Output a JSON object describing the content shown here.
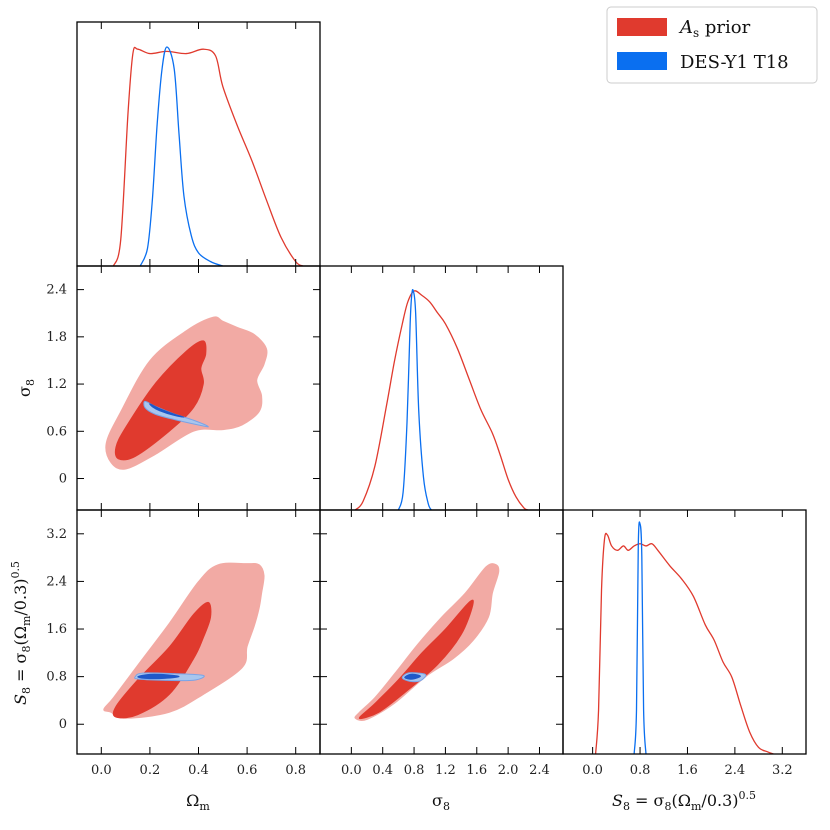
{
  "chart_data": {
    "type": "triangle-plot",
    "legend": {
      "placement": "top-right",
      "entries": [
        {
          "label": "A_s prior",
          "label_main": "A",
          "label_sub": "s",
          "label_rest": " prior",
          "color": "#e03a2e"
        },
        {
          "label": "DES-Y1 T18",
          "color": "#0a6ff0"
        }
      ]
    },
    "colors": {
      "red_line": "#e03a2e",
      "red_outer": "#f2aaa4",
      "red_inner": "#e03a2e",
      "blue_line": "#0a6ff0",
      "blue_outer": "#a8c6ee",
      "blue_inner": "#1f58c9"
    },
    "parameters": [
      {
        "name": "Omega_m",
        "label": "Ωm",
        "label_main": "Ω",
        "label_sub": "m",
        "range": [
          -0.1,
          0.9
        ],
        "ticks": [
          0.0,
          0.2,
          0.4,
          0.6,
          0.8
        ],
        "tick_labels": [
          "0.0",
          "0.2",
          "0.4",
          "0.6",
          "0.8"
        ]
      },
      {
        "name": "sigma_8",
        "label": "σ8",
        "label_main": "σ",
        "label_sub": "8",
        "range": [
          -0.4,
          2.7
        ],
        "ticks": [
          0.0,
          0.6,
          1.2,
          1.8,
          2.4
        ],
        "tick_labels": [
          "0",
          "0.6",
          "1.2",
          "1.8",
          "2.4"
        ],
        "x_ticks": [
          0.0,
          0.4,
          0.8,
          1.2,
          1.6,
          2.0,
          2.4
        ],
        "x_tick_labels": [
          "0.0",
          "0.4",
          "0.8",
          "1.2",
          "1.6",
          "2.0",
          "2.4"
        ]
      },
      {
        "name": "S_8",
        "label": "S8 = σ8(Ωm/0.3)^0.5",
        "range": [
          -0.5,
          3.6
        ],
        "ticks": [
          0.0,
          0.8,
          1.6,
          2.4,
          3.2
        ],
        "tick_labels": [
          "0",
          "0.8",
          "1.6",
          "2.4",
          "3.2"
        ],
        "x_ticks": [
          0.0,
          0.8,
          1.6,
          2.4,
          3.2
        ],
        "x_tick_labels": [
          "0.0",
          "0.8",
          "1.6",
          "2.4",
          "3.2"
        ]
      }
    ],
    "diagonals": [
      {
        "param": "Omega_m",
        "red_curve": [
          [
            0.05,
            0
          ],
          [
            0.08,
            0.12
          ],
          [
            0.11,
            0.7
          ],
          [
            0.13,
            0.97
          ],
          [
            0.15,
            0.99
          ],
          [
            0.2,
            0.97
          ],
          [
            0.27,
            0.98
          ],
          [
            0.35,
            0.97
          ],
          [
            0.42,
            0.99
          ],
          [
            0.47,
            0.96
          ],
          [
            0.5,
            0.82
          ],
          [
            0.56,
            0.64
          ],
          [
            0.62,
            0.48
          ],
          [
            0.68,
            0.3
          ],
          [
            0.74,
            0.13
          ],
          [
            0.8,
            0.02
          ],
          [
            0.83,
            0
          ]
        ],
        "blue_curve": [
          [
            0.16,
            0
          ],
          [
            0.19,
            0.08
          ],
          [
            0.21,
            0.3
          ],
          [
            0.23,
            0.65
          ],
          [
            0.25,
            0.9
          ],
          [
            0.27,
            1.0
          ],
          [
            0.3,
            0.9
          ],
          [
            0.32,
            0.6
          ],
          [
            0.34,
            0.32
          ],
          [
            0.37,
            0.14
          ],
          [
            0.4,
            0.06
          ],
          [
            0.45,
            0.02
          ],
          [
            0.5,
            0
          ]
        ]
      },
      {
        "param": "sigma_8",
        "red_curve": [
          [
            0.05,
            0
          ],
          [
            0.15,
            0.04
          ],
          [
            0.3,
            0.2
          ],
          [
            0.45,
            0.48
          ],
          [
            0.55,
            0.68
          ],
          [
            0.65,
            0.85
          ],
          [
            0.72,
            0.95
          ],
          [
            0.8,
            1.0
          ],
          [
            0.9,
            0.98
          ],
          [
            1.0,
            0.95
          ],
          [
            1.1,
            0.9
          ],
          [
            1.2,
            0.85
          ],
          [
            1.35,
            0.74
          ],
          [
            1.5,
            0.6
          ],
          [
            1.65,
            0.46
          ],
          [
            1.8,
            0.35
          ],
          [
            1.9,
            0.25
          ],
          [
            2.0,
            0.14
          ],
          [
            2.1,
            0.06
          ],
          [
            2.2,
            0.01
          ],
          [
            2.25,
            0
          ]
        ],
        "blue_curve": [
          [
            0.6,
            0
          ],
          [
            0.66,
            0.08
          ],
          [
            0.71,
            0.4
          ],
          [
            0.75,
            0.85
          ],
          [
            0.77,
            0.98
          ],
          [
            0.79,
            1.0
          ],
          [
            0.82,
            0.9
          ],
          [
            0.86,
            0.45
          ],
          [
            0.92,
            0.15
          ],
          [
            0.98,
            0.03
          ],
          [
            1.02,
            0
          ]
        ]
      },
      {
        "param": "S_8",
        "red_curve": [
          [
            0.05,
            0
          ],
          [
            0.1,
            0.2
          ],
          [
            0.15,
            0.75
          ],
          [
            0.2,
            0.98
          ],
          [
            0.25,
            1.0
          ],
          [
            0.32,
            0.95
          ],
          [
            0.42,
            0.93
          ],
          [
            0.52,
            0.95
          ],
          [
            0.6,
            0.93
          ],
          [
            0.7,
            0.95
          ],
          [
            0.8,
            0.96
          ],
          [
            0.9,
            0.95
          ],
          [
            1.0,
            0.96
          ],
          [
            1.1,
            0.93
          ],
          [
            1.3,
            0.86
          ],
          [
            1.5,
            0.8
          ],
          [
            1.7,
            0.72
          ],
          [
            1.9,
            0.59
          ],
          [
            2.05,
            0.52
          ],
          [
            2.2,
            0.42
          ],
          [
            2.35,
            0.35
          ],
          [
            2.5,
            0.22
          ],
          [
            2.65,
            0.1
          ],
          [
            2.8,
            0.03
          ],
          [
            2.95,
            0.01
          ],
          [
            3.05,
            0
          ]
        ],
        "blue_curve": [
          [
            0.7,
            0
          ],
          [
            0.74,
            0.2
          ],
          [
            0.77,
            0.95
          ],
          [
            0.8,
            1.05
          ],
          [
            0.83,
            0.9
          ],
          [
            0.86,
            0.2
          ],
          [
            0.9,
            0
          ]
        ]
      }
    ],
    "contours": [
      {
        "row": 1,
        "col": 0,
        "red_outer": [
          [
            0.04,
            0.2
          ],
          [
            0.1,
            0.12
          ],
          [
            0.22,
            0.3
          ],
          [
            0.38,
            0.6
          ],
          [
            0.5,
            0.62
          ],
          [
            0.58,
            0.68
          ],
          [
            0.65,
            0.85
          ],
          [
            0.66,
            1.05
          ],
          [
            0.64,
            1.25
          ],
          [
            0.67,
            1.45
          ],
          [
            0.68,
            1.65
          ],
          [
            0.63,
            1.83
          ],
          [
            0.56,
            1.92
          ],
          [
            0.5,
            2.0
          ],
          [
            0.46,
            2.05
          ],
          [
            0.35,
            1.88
          ],
          [
            0.2,
            1.5
          ],
          [
            0.08,
            0.85
          ],
          [
            0.02,
            0.45
          ]
        ],
        "red_inner": [
          [
            0.07,
            0.25
          ],
          [
            0.14,
            0.28
          ],
          [
            0.28,
            0.6
          ],
          [
            0.38,
            0.9
          ],
          [
            0.42,
            1.2
          ],
          [
            0.41,
            1.4
          ],
          [
            0.43,
            1.58
          ],
          [
            0.42,
            1.75
          ],
          [
            0.35,
            1.62
          ],
          [
            0.22,
            1.2
          ],
          [
            0.1,
            0.65
          ],
          [
            0.06,
            0.4
          ]
        ],
        "blue_outer": [
          [
            0.18,
            0.98
          ],
          [
            0.22,
            0.92
          ],
          [
            0.3,
            0.82
          ],
          [
            0.38,
            0.74
          ],
          [
            0.44,
            0.66
          ],
          [
            0.4,
            0.68
          ],
          [
            0.3,
            0.75
          ],
          [
            0.22,
            0.82
          ],
          [
            0.18,
            0.9
          ]
        ],
        "blue_inner": [
          [
            0.2,
            0.95
          ],
          [
            0.24,
            0.89
          ],
          [
            0.3,
            0.82
          ],
          [
            0.34,
            0.78
          ],
          [
            0.3,
            0.8
          ],
          [
            0.24,
            0.86
          ],
          [
            0.21,
            0.91
          ]
        ]
      },
      {
        "row": 2,
        "col": 0,
        "red_outer": [
          [
            0.04,
            0.2
          ],
          [
            0.1,
            0.1
          ],
          [
            0.28,
            0.2
          ],
          [
            0.42,
            0.5
          ],
          [
            0.58,
            0.95
          ],
          [
            0.6,
            1.3
          ],
          [
            0.63,
            1.65
          ],
          [
            0.65,
            1.95
          ],
          [
            0.66,
            2.2
          ],
          [
            0.67,
            2.5
          ],
          [
            0.65,
            2.68
          ],
          [
            0.6,
            2.7
          ],
          [
            0.48,
            2.68
          ],
          [
            0.4,
            2.4
          ],
          [
            0.28,
            1.7
          ],
          [
            0.16,
            1.05
          ],
          [
            0.05,
            0.45
          ],
          [
            0.01,
            0.25
          ]
        ],
        "red_inner": [
          [
            0.06,
            0.12
          ],
          [
            0.15,
            0.16
          ],
          [
            0.28,
            0.5
          ],
          [
            0.38,
            1.1
          ],
          [
            0.42,
            1.45
          ],
          [
            0.45,
            1.8
          ],
          [
            0.44,
            2.05
          ],
          [
            0.38,
            1.85
          ],
          [
            0.28,
            1.3
          ],
          [
            0.15,
            0.75
          ],
          [
            0.06,
            0.3
          ]
        ],
        "blue_outer": [
          [
            0.14,
            0.8
          ],
          [
            0.17,
            0.86
          ],
          [
            0.3,
            0.85
          ],
          [
            0.42,
            0.82
          ],
          [
            0.38,
            0.74
          ],
          [
            0.25,
            0.74
          ],
          [
            0.15,
            0.76
          ]
        ],
        "blue_inner": [
          [
            0.15,
            0.8
          ],
          [
            0.2,
            0.84
          ],
          [
            0.28,
            0.83
          ],
          [
            0.32,
            0.8
          ],
          [
            0.26,
            0.77
          ],
          [
            0.18,
            0.77
          ]
        ]
      },
      {
        "row": 2,
        "col": 1,
        "red_outer": [
          [
            0.05,
            0.1
          ],
          [
            0.2,
            0.08
          ],
          [
            0.55,
            0.35
          ],
          [
            0.95,
            0.8
          ],
          [
            1.3,
            1.1
          ],
          [
            1.55,
            1.4
          ],
          [
            1.75,
            1.8
          ],
          [
            1.8,
            2.2
          ],
          [
            1.88,
            2.55
          ],
          [
            1.85,
            2.68
          ],
          [
            1.72,
            2.65
          ],
          [
            1.45,
            2.2
          ],
          [
            1.15,
            1.8
          ],
          [
            0.85,
            1.35
          ],
          [
            0.55,
            0.85
          ],
          [
            0.3,
            0.45
          ],
          [
            0.1,
            0.2
          ]
        ],
        "red_inner": [
          [
            0.1,
            0.1
          ],
          [
            0.35,
            0.2
          ],
          [
            0.7,
            0.55
          ],
          [
            1.1,
            1.0
          ],
          [
            1.4,
            1.5
          ],
          [
            1.55,
            2.0
          ],
          [
            1.5,
            2.05
          ],
          [
            1.2,
            1.6
          ],
          [
            0.9,
            1.2
          ],
          [
            0.6,
            0.75
          ],
          [
            0.3,
            0.35
          ]
        ],
        "blue_outer": [
          [
            0.65,
            0.78
          ],
          [
            0.72,
            0.86
          ],
          [
            0.85,
            0.86
          ],
          [
            0.95,
            0.83
          ],
          [
            0.88,
            0.73
          ],
          [
            0.75,
            0.72
          ]
        ],
        "blue_inner": [
          [
            0.68,
            0.79
          ],
          [
            0.75,
            0.84
          ],
          [
            0.85,
            0.83
          ],
          [
            0.88,
            0.8
          ],
          [
            0.8,
            0.76
          ],
          [
            0.72,
            0.76
          ]
        ]
      }
    ]
  }
}
